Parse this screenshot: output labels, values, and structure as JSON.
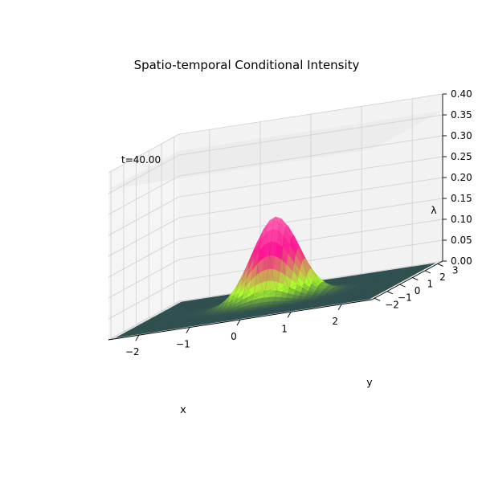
{
  "chart_data": {
    "type": "surface3d",
    "title": "Spatio-temporal Conditional Intensity",
    "annotation": "t=40.00",
    "xlabel": "x",
    "ylabel": "y",
    "zlabel": "λ",
    "xlim": [
      -2.6,
      2.6
    ],
    "ylim": [
      -2.2,
      3.4
    ],
    "zlim": [
      0.0,
      0.4
    ],
    "x_ticks": [
      "−2",
      "−1",
      "0",
      "1",
      "2"
    ],
    "x_tick_values": [
      -2,
      -1,
      0,
      1,
      2
    ],
    "y_ticks": [
      "−2",
      "−1",
      "0",
      "1",
      "2",
      "3"
    ],
    "y_tick_values": [
      -2,
      -1,
      0,
      1,
      2,
      3
    ],
    "z_ticks": [
      "0.00",
      "0.05",
      "0.10",
      "0.15",
      "0.20",
      "0.25",
      "0.30",
      "0.35",
      "0.40"
    ],
    "z_tick_values": [
      0.0,
      0.05,
      0.1,
      0.15,
      0.2,
      0.25,
      0.3,
      0.35,
      0.4
    ],
    "peak": {
      "x": 0.0,
      "y": 0.6,
      "z": 0.2,
      "sigma": 0.45
    },
    "surface_grid": {
      "x_range": [
        -2.5,
        2.5
      ],
      "y_range": [
        -2.0,
        3.2
      ]
    },
    "colors": {
      "low": "#2f4f4f",
      "mid": "#adff2f",
      "high": "#ff1493",
      "top": "#ff69b4",
      "pane": "#f2f2f2",
      "grid": "#cfcfcf"
    }
  }
}
